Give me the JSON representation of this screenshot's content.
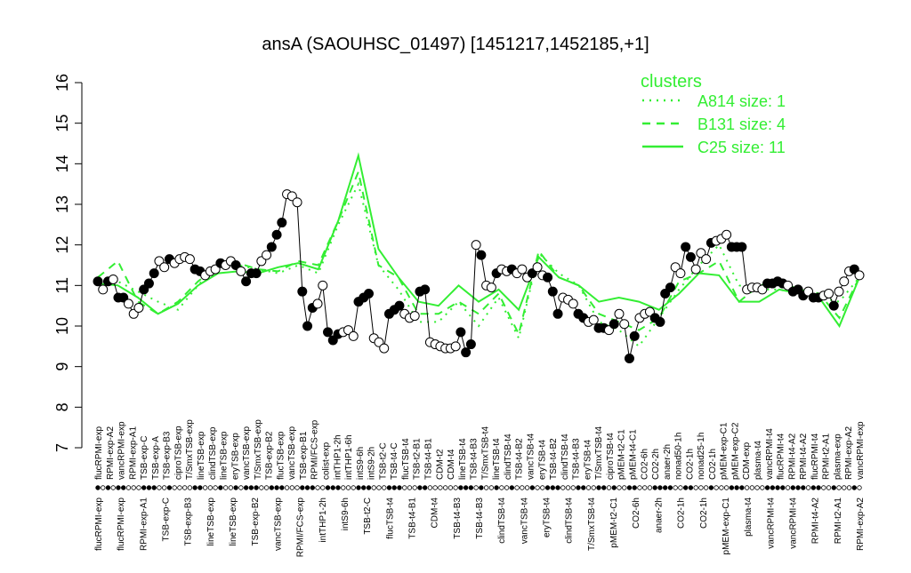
{
  "chart_data": {
    "type": "line",
    "title": "ansA (SAOUHSC_01497) [1451217,1452185,+1]",
    "xlabel": "",
    "ylabel": "",
    "ylim": [
      7,
      16
    ],
    "yticks": [
      7,
      8,
      9,
      10,
      11,
      12,
      13,
      14,
      15,
      16
    ],
    "grid": false,
    "x_labels_top": [
      "flucRPMI-exp",
      "RPMI-exp-A2",
      "vancRPMI-exp",
      "RPMI-exp-A1",
      "TSB-exp-C",
      "TSB-exp-A",
      "TSB-exp-B3",
      "ciproTSB-exp",
      "T/SmxTSB-exp",
      "lineTSB-exp",
      "clindTSB-exp",
      "lineTSB-exp",
      "eryTSB-exp",
      "vancTSB-exp",
      "T/SmxTSB-exp",
      "TSB-exp-B2",
      "flucTSB-exp",
      "vancTSB-exp",
      "TSB-exp-B1",
      "RPMI/FCS-exp",
      "colist-exp",
      "intTHP1-2h",
      "intTHP1-6h",
      "intS9-6h",
      "intS9-2h",
      "TSB-t2-C",
      "TSB-t4-C",
      "flucTSB-t4",
      "TSB-t2-B1",
      "TSB-t4-B1",
      "CDM-t2",
      "CDM-t4",
      "lineTSB-t4",
      "TSB-t4-B3",
      "T/SmxTSB-t4",
      "lineTSB-t4",
      "clindTSB-t4",
      "TSB-t4-B2",
      "vancTSB-t4",
      "eryTSB-t4",
      "TSB-t4-B2",
      "clindTSB-t4",
      "TSB-t4-B3",
      "eryTSB-t4",
      "T/SmxTSB-t4",
      "ciproTSB-t4",
      "pMEM-t2-C1",
      "pMEM-t4-C1",
      "CO2-6h",
      "CO2-2h",
      "anaer-2h",
      "nonad50-1h",
      "CO2-1h",
      "nonad25-1h",
      "CO2-1h",
      "pMEM-exp-C1",
      "pMEM-exp-C2",
      "CDM-exp",
      "plasma-t4",
      "vancRPMI-t4",
      "flucRPMI-t4",
      "RPMI-t4-A2",
      "RPMI-t4-A2",
      "flucRPMI-t4",
      "RPMI-t2-A1",
      "plasma-exp",
      "RPMI-exp-A2",
      "vancRPMI-exp"
    ],
    "x_labels_bottom": [
      "flucRPMI-exp",
      "flucRPMI-exp",
      "RPMI-exp-A1",
      "TSB-exp-C",
      "TSB-exp-B3",
      "lineTSB-exp",
      "lineTSB-exp",
      "TSB-exp-B2",
      "vancTSB-exp",
      "RPMI/FCS-exp",
      "intTHP1-2h",
      "intS9-6h",
      "TSB-t2-C",
      "flucTSB-t4",
      "TSB-t4-B1",
      "CDM-t4",
      "TSB-t4-B3",
      "TSB-t4-B3",
      "clindTSB-t4",
      "vancTSB-t4",
      "eryTSB-t4",
      "clindTSB-t4",
      "T/SmxTSB-t4",
      "pMEM-t2-C1",
      "CO2-6h",
      "anaer-2h",
      "CO2-1h",
      "CO2-1h",
      "pMEM-exp-C1",
      "plasma-t4",
      "vancRPMI-t4",
      "vancRPMI-t4",
      "RPMI-t4-A2",
      "RPMI-t2-A1",
      "RPMI-exp-A2"
    ],
    "points": [
      {
        "y": 11.1,
        "filled": true
      },
      {
        "y": 10.9,
        "filled": false
      },
      {
        "y": 11.1,
        "filled": true
      },
      {
        "y": 11.15,
        "filled": false
      },
      {
        "y": 10.7,
        "filled": true
      },
      {
        "y": 10.7,
        "filled": true
      },
      {
        "y": 10.55,
        "filled": false
      },
      {
        "y": 10.3,
        "filled": false
      },
      {
        "y": 10.45,
        "filled": false
      },
      {
        "y": 10.9,
        "filled": true
      },
      {
        "y": 11.05,
        "filled": true
      },
      {
        "y": 11.3,
        "filled": true
      },
      {
        "y": 11.6,
        "filled": false
      },
      {
        "y": 11.45,
        "filled": false
      },
      {
        "y": 11.65,
        "filled": true
      },
      {
        "y": 11.55,
        "filled": false
      },
      {
        "y": 11.65,
        "filled": false
      },
      {
        "y": 11.7,
        "filled": false
      },
      {
        "y": 11.65,
        "filled": false
      },
      {
        "y": 11.4,
        "filled": true
      },
      {
        "y": 11.35,
        "filled": true
      },
      {
        "y": 11.25,
        "filled": false
      },
      {
        "y": 11.35,
        "filled": false
      },
      {
        "y": 11.4,
        "filled": false
      },
      {
        "y": 11.55,
        "filled": true
      },
      {
        "y": 11.5,
        "filled": false
      },
      {
        "y": 11.6,
        "filled": false
      },
      {
        "y": 11.5,
        "filled": true
      },
      {
        "y": 11.35,
        "filled": false
      },
      {
        "y": 11.1,
        "filled": true
      },
      {
        "y": 11.3,
        "filled": true
      },
      {
        "y": 11.3,
        "filled": true
      },
      {
        "y": 11.6,
        "filled": false
      },
      {
        "y": 11.75,
        "filled": false
      },
      {
        "y": 11.95,
        "filled": true
      },
      {
        "y": 12.25,
        "filled": true
      },
      {
        "y": 12.55,
        "filled": true
      },
      {
        "y": 13.25,
        "filled": false
      },
      {
        "y": 13.2,
        "filled": false
      },
      {
        "y": 13.05,
        "filled": false
      },
      {
        "y": 10.85,
        "filled": true
      },
      {
        "y": 10.0,
        "filled": true
      },
      {
        "y": 10.45,
        "filled": true
      },
      {
        "y": 10.55,
        "filled": false
      },
      {
        "y": 11.0,
        "filled": false
      },
      {
        "y": 9.85,
        "filled": true
      },
      {
        "y": 9.65,
        "filled": true
      },
      {
        "y": 9.8,
        "filled": true
      },
      {
        "y": 9.85,
        "filled": false
      },
      {
        "y": 9.9,
        "filled": false
      },
      {
        "y": 9.75,
        "filled": false
      },
      {
        "y": 10.6,
        "filled": true
      },
      {
        "y": 10.7,
        "filled": true
      },
      {
        "y": 10.8,
        "filled": true
      },
      {
        "y": 9.7,
        "filled": false
      },
      {
        "y": 9.6,
        "filled": false
      },
      {
        "y": 9.45,
        "filled": false
      },
      {
        "y": 10.3,
        "filled": true
      },
      {
        "y": 10.4,
        "filled": true
      },
      {
        "y": 10.5,
        "filled": true
      },
      {
        "y": 10.3,
        "filled": false
      },
      {
        "y": 10.2,
        "filled": false
      },
      {
        "y": 10.25,
        "filled": false
      },
      {
        "y": 10.85,
        "filled": true
      },
      {
        "y": 10.9,
        "filled": true
      },
      {
        "y": 9.6,
        "filled": false
      },
      {
        "y": 9.55,
        "filled": false
      },
      {
        "y": 9.5,
        "filled": false
      },
      {
        "y": 9.45,
        "filled": false
      },
      {
        "y": 9.45,
        "filled": false
      },
      {
        "y": 9.5,
        "filled": false
      },
      {
        "y": 9.85,
        "filled": true
      },
      {
        "y": 9.35,
        "filled": true
      },
      {
        "y": 9.55,
        "filled": true
      },
      {
        "y": 12.0,
        "filled": false
      },
      {
        "y": 11.75,
        "filled": true
      },
      {
        "y": 11.0,
        "filled": false
      },
      {
        "y": 10.95,
        "filled": false
      },
      {
        "y": 11.3,
        "filled": true
      },
      {
        "y": 11.4,
        "filled": false
      },
      {
        "y": 11.35,
        "filled": false
      },
      {
        "y": 11.4,
        "filled": true
      },
      {
        "y": 11.3,
        "filled": false
      },
      {
        "y": 11.4,
        "filled": false
      },
      {
        "y": 11.2,
        "filled": false
      },
      {
        "y": 11.3,
        "filled": true
      },
      {
        "y": 11.45,
        "filled": false
      },
      {
        "y": 11.25,
        "filled": false
      },
      {
        "y": 11.2,
        "filled": true
      },
      {
        "y": 10.85,
        "filled": true
      },
      {
        "y": 10.3,
        "filled": true
      },
      {
        "y": 10.7,
        "filled": false
      },
      {
        "y": 10.65,
        "filled": false
      },
      {
        "y": 10.55,
        "filled": false
      },
      {
        "y": 10.3,
        "filled": true
      },
      {
        "y": 10.2,
        "filled": true
      },
      {
        "y": 10.1,
        "filled": false
      },
      {
        "y": 10.15,
        "filled": false
      },
      {
        "y": 9.95,
        "filled": true
      },
      {
        "y": 9.95,
        "filled": true
      },
      {
        "y": 9.9,
        "filled": false
      },
      {
        "y": 10.05,
        "filled": true
      },
      {
        "y": 10.3,
        "filled": false
      },
      {
        "y": 10.05,
        "filled": false
      },
      {
        "y": 9.2,
        "filled": true
      },
      {
        "y": 9.75,
        "filled": true
      },
      {
        "y": 10.2,
        "filled": false
      },
      {
        "y": 10.3,
        "filled": false
      },
      {
        "y": 10.35,
        "filled": false
      },
      {
        "y": 10.2,
        "filled": true
      },
      {
        "y": 10.1,
        "filled": true
      },
      {
        "y": 10.8,
        "filled": true
      },
      {
        "y": 10.95,
        "filled": true
      },
      {
        "y": 11.45,
        "filled": false
      },
      {
        "y": 11.3,
        "filled": false
      },
      {
        "y": 11.95,
        "filled": true
      },
      {
        "y": 11.7,
        "filled": true
      },
      {
        "y": 11.4,
        "filled": false
      },
      {
        "y": 11.8,
        "filled": false
      },
      {
        "y": 11.65,
        "filled": false
      },
      {
        "y": 12.05,
        "filled": true
      },
      {
        "y": 12.1,
        "filled": false
      },
      {
        "y": 12.15,
        "filled": false
      },
      {
        "y": 12.25,
        "filled": false
      },
      {
        "y": 11.95,
        "filled": true
      },
      {
        "y": 11.95,
        "filled": true
      },
      {
        "y": 11.95,
        "filled": true
      },
      {
        "y": 10.9,
        "filled": false
      },
      {
        "y": 10.95,
        "filled": false
      },
      {
        "y": 10.95,
        "filled": false
      },
      {
        "y": 10.9,
        "filled": false
      },
      {
        "y": 11.05,
        "filled": true
      },
      {
        "y": 11.05,
        "filled": true
      },
      {
        "y": 11.1,
        "filled": true
      },
      {
        "y": 11.05,
        "filled": true
      },
      {
        "y": 11.0,
        "filled": false
      },
      {
        "y": 10.85,
        "filled": true
      },
      {
        "y": 10.9,
        "filled": true
      },
      {
        "y": 10.75,
        "filled": true
      },
      {
        "y": 10.85,
        "filled": false
      },
      {
        "y": 10.7,
        "filled": true
      },
      {
        "y": 10.7,
        "filled": true
      },
      {
        "y": 10.75,
        "filled": false
      },
      {
        "y": 10.8,
        "filled": false
      },
      {
        "y": 10.5,
        "filled": true
      },
      {
        "y": 10.85,
        "filled": false
      },
      {
        "y": 11.1,
        "filled": false
      },
      {
        "y": 11.35,
        "filled": false
      },
      {
        "y": 11.4,
        "filled": true
      },
      {
        "y": 11.25,
        "filled": false
      }
    ],
    "series": [
      {
        "name": "A814 size: 1",
        "style": "dotted",
        "values": [
          11.05,
          11.1,
          10.85,
          10.6,
          10.4,
          11.0,
          11.55,
          11.5,
          11.4,
          11.3,
          11.5,
          11.3,
          12.5,
          13.5,
          11.5,
          10.9,
          10.1,
          10.1,
          10.6,
          10.0,
          10.7,
          9.7,
          11.8,
          11.3,
          11.0,
          10.1,
          9.9,
          9.5,
          10.2,
          10.9,
          11.5,
          12.0,
          11.0,
          10.9,
          10.9,
          10.8,
          10.7,
          10.6,
          11.2
        ]
      },
      {
        "name": "B131 size: 4",
        "style": "dashed",
        "values": [
          11.2,
          11.6,
          10.6,
          10.3,
          10.6,
          11.1,
          11.5,
          11.55,
          11.4,
          11.35,
          11.6,
          11.5,
          12.6,
          13.8,
          11.5,
          11.2,
          10.3,
          10.3,
          10.6,
          10.3,
          10.8,
          9.8,
          11.85,
          11.2,
          11.0,
          10.3,
          10.1,
          9.9,
          10.2,
          11.1,
          11.3,
          11.6,
          10.6,
          11.0,
          11.1,
          10.9,
          10.8,
          10.2,
          11.2
        ]
      },
      {
        "name": "C25 size: 11",
        "style": "solid",
        "values": [
          11.05,
          11.0,
          10.7,
          10.3,
          10.55,
          11.0,
          11.3,
          11.35,
          11.3,
          11.45,
          11.55,
          11.4,
          12.6,
          14.2,
          11.9,
          11.2,
          10.6,
          10.5,
          11.0,
          10.6,
          10.9,
          10.4,
          11.7,
          11.2,
          11.0,
          10.6,
          10.7,
          10.6,
          10.4,
          10.8,
          11.3,
          11.25,
          10.6,
          10.6,
          10.9,
          10.8,
          10.7,
          10.0,
          11.2
        ]
      }
    ],
    "legend": {
      "title": "clusters",
      "placement": "top-right"
    },
    "colors": {
      "series": "#33ee33",
      "points": "#000000",
      "axis": "#000000"
    }
  }
}
